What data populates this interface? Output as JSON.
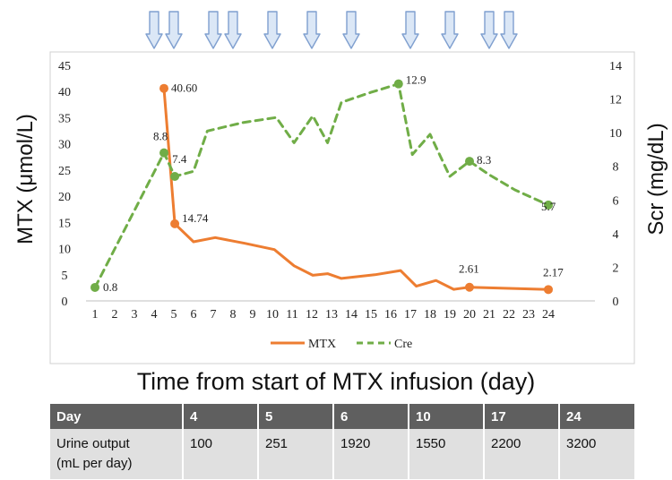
{
  "chart_data": {
    "type": "line",
    "x": [
      1,
      2,
      3,
      4,
      5,
      6,
      7,
      8,
      9,
      10,
      11,
      12,
      13,
      14,
      15,
      16,
      17,
      18,
      19,
      20,
      21,
      22,
      23,
      24
    ],
    "xlabel": "Time from start of MTX infusion (day)",
    "series": [
      {
        "name": "MTX",
        "axis": "left",
        "color": "#ED7D31",
        "style": "solid",
        "points": [
          [
            4.5,
            40.6
          ],
          [
            5.05,
            14.74
          ],
          [
            6.0,
            11.3
          ],
          [
            7.1,
            12.1
          ],
          [
            8.6,
            11.0
          ],
          [
            10.1,
            9.8
          ],
          [
            11.1,
            6.7
          ],
          [
            12.05,
            4.9
          ],
          [
            12.8,
            5.2
          ],
          [
            13.5,
            4.3
          ],
          [
            15.2,
            5.0
          ],
          [
            16.5,
            5.8
          ],
          [
            17.3,
            2.8
          ],
          [
            18.3,
            3.9
          ],
          [
            19.2,
            2.2
          ],
          [
            20.0,
            2.61
          ],
          [
            22.0,
            2.4
          ],
          [
            24.0,
            2.17
          ]
        ],
        "labeled_points": [
          {
            "index": 0,
            "label": "40.60"
          },
          {
            "index": 1,
            "label": "14.74"
          },
          {
            "index": 15,
            "label": "2.61"
          },
          {
            "index": 17,
            "label": "2.17"
          }
        ]
      },
      {
        "name": "Cre",
        "axis": "right",
        "color": "#70AD47",
        "style": "dashed",
        "points": [
          [
            1.0,
            0.8
          ],
          [
            4.5,
            8.8
          ],
          [
            5.05,
            7.4
          ],
          [
            6.0,
            7.7
          ],
          [
            6.7,
            10.1
          ],
          [
            8.5,
            10.6
          ],
          [
            10.2,
            10.9
          ],
          [
            11.1,
            9.4
          ],
          [
            12.05,
            11.0
          ],
          [
            12.8,
            9.4
          ],
          [
            13.5,
            11.8
          ],
          [
            15.0,
            12.4
          ],
          [
            16.4,
            12.9
          ],
          [
            17.1,
            8.7
          ],
          [
            18.0,
            9.9
          ],
          [
            19.0,
            7.4
          ],
          [
            20.0,
            8.3
          ],
          [
            21.0,
            7.5
          ],
          [
            22.3,
            6.6
          ],
          [
            24.0,
            5.7
          ]
        ],
        "labeled_points": [
          {
            "index": 0,
            "label": "0.8"
          },
          {
            "index": 1,
            "label": "8.8"
          },
          {
            "index": 2,
            "label": "7.4"
          },
          {
            "index": 12,
            "label": "12.9"
          },
          {
            "index": 16,
            "label": "8.3"
          },
          {
            "index": 19,
            "label": "5.7"
          }
        ]
      }
    ],
    "left_axis": {
      "title": "MTX (μmol/L)",
      "ticks": [
        0,
        5,
        10,
        15,
        20,
        25,
        30,
        35,
        40,
        45
      ],
      "range": [
        0,
        45
      ]
    },
    "right_axis": {
      "title": "Scr (mg/dL)",
      "ticks": [
        0,
        2,
        4,
        6,
        8,
        10,
        12,
        14
      ],
      "range": [
        0,
        14
      ]
    },
    "arrow_days": [
      4,
      5,
      7,
      8,
      10,
      12,
      14,
      17,
      19,
      21,
      22
    ],
    "legend": {
      "placement": "bottom-center",
      "items": [
        "MTX",
        "Cre"
      ]
    },
    "table": {
      "row_header": "Day",
      "row_label": "Urine output\n(mL per day)",
      "columns": [
        {
          "day": "4",
          "value": "100"
        },
        {
          "day": "5",
          "value": "251"
        },
        {
          "day": "6",
          "value": "1920"
        },
        {
          "day": "10",
          "value": "1550"
        },
        {
          "day": "17",
          "value": "2200"
        },
        {
          "day": "24",
          "value": "3200"
        }
      ]
    }
  }
}
